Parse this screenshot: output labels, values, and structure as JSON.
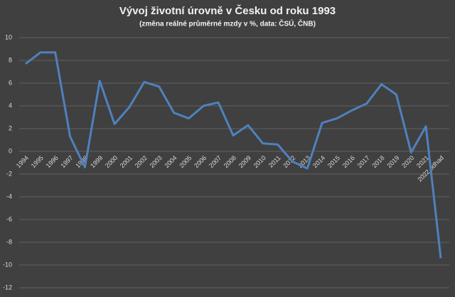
{
  "chart_data": {
    "type": "line",
    "title": "Vývoj životní úrovně v Česku od roku 1993",
    "subtitle": "(změna reálné průměrné mzdy v %, data: ČSÚ, ČNB)",
    "categories": [
      "1994",
      "1995",
      "1996",
      "1997",
      "1998",
      "1999",
      "2000",
      "2001",
      "2002",
      "2003",
      "2004",
      "2005",
      "2006",
      "2007",
      "2008",
      "2009",
      "2010",
      "2011",
      "2012",
      "2013",
      "2014",
      "2015",
      "2016",
      "2017",
      "2018",
      "2019",
      "2020",
      "2021",
      "2022 odhad"
    ],
    "values": [
      7.7,
      8.7,
      8.7,
      1.3,
      -1.4,
      6.2,
      2.4,
      3.9,
      6.1,
      5.7,
      3.4,
      2.9,
      4.0,
      4.3,
      1.4,
      2.3,
      0.7,
      0.6,
      -0.9,
      -1.5,
      2.5,
      2.9,
      3.6,
      4.2,
      5.9,
      5.0,
      -0.1,
      2.2,
      -9.4
    ],
    "color": "#4f81bd",
    "ylim": [
      -12,
      10
    ],
    "yticks": [
      -12,
      -10,
      -8,
      -6,
      -4,
      -2,
      0,
      2,
      4,
      6,
      8,
      10
    ],
    "grid": true
  }
}
